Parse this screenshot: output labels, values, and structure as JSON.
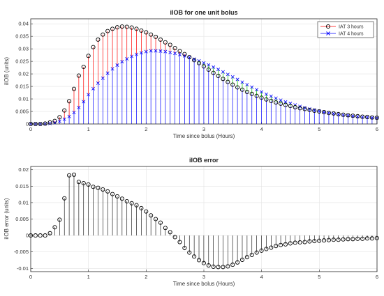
{
  "chart_data": [
    {
      "type": "line",
      "title": "iIOB for one unit bolus",
      "xlabel": "Time since bolus (Hours)",
      "ylabel": "iIOB (units)",
      "xlim": [
        0,
        6
      ],
      "ylim": [
        0,
        0.042
      ],
      "x_ticks": [
        "0",
        "1",
        "2",
        "3",
        "4",
        "5",
        "6"
      ],
      "y_ticks": [
        "0",
        "0.005",
        "0.01",
        "0.015",
        "0.02",
        "0.025",
        "0.03",
        "0.035",
        "0.04"
      ],
      "grid": true,
      "legend_position": "top-right",
      "x_step_hours": 0.0833,
      "series": [
        {
          "name": "IAT 3 hours",
          "marker": "o",
          "values": [
            0,
            0,
            0,
            0.00015,
            0.0006,
            0.0012,
            0.0027,
            0.0054,
            0.0091,
            0.014,
            0.0193,
            0.0228,
            0.0272,
            0.0307,
            0.0337,
            0.0357,
            0.0371,
            0.038,
            0.0386,
            0.0389,
            0.0388,
            0.0385,
            0.038,
            0.0373,
            0.0366,
            0.0357,
            0.0348,
            0.0337,
            0.0326,
            0.0316,
            0.0303,
            0.0291,
            0.0279,
            0.0267,
            0.0255,
            0.0243,
            0.023,
            0.0217,
            0.0204,
            0.0192,
            0.018,
            0.0168,
            0.0157,
            0.0146,
            0.0137,
            0.0128,
            0.012,
            0.0112,
            0.0105,
            0.0098,
            0.0092,
            0.0086,
            0.0081,
            0.0076,
            0.0072,
            0.0067,
            0.0063,
            0.006,
            0.0056,
            0.0053,
            0.005,
            0.0047,
            0.0044,
            0.0042,
            0.0039,
            0.0037,
            0.0035,
            0.0033,
            0.0031,
            0.0029,
            0.0028,
            0.0026,
            0.0025
          ]
        },
        {
          "name": "IAT 4 hours",
          "marker": "x",
          "values": [
            0,
            0,
            0,
            5e-05,
            0.0002,
            0.0005,
            0.0011,
            0.0019,
            0.003,
            0.0046,
            0.0066,
            0.0089,
            0.0117,
            0.0141,
            0.0163,
            0.0183,
            0.0203,
            0.022,
            0.0235,
            0.0249,
            0.026,
            0.027,
            0.0278,
            0.0284,
            0.0289,
            0.0292,
            0.0292,
            0.0291,
            0.0289,
            0.0286,
            0.0282,
            0.0277,
            0.0272,
            0.0266,
            0.0259,
            0.0252,
            0.0244,
            0.0236,
            0.0227,
            0.0218,
            0.0208,
            0.0198,
            0.0188,
            0.0178,
            0.0167,
            0.0157,
            0.0147,
            0.0137,
            0.0128,
            0.0119,
            0.0111,
            0.0103,
            0.0095,
            0.0088,
            0.0082,
            0.0076,
            0.007,
            0.0065,
            0.006,
            0.0056,
            0.0052,
            0.0048,
            0.0045,
            0.0042,
            0.0039,
            0.0036,
            0.0034,
            0.0032,
            0.003,
            0.0028,
            0.0027,
            0.0025,
            0.0024
          ]
        }
      ]
    },
    {
      "type": "stem",
      "title": "iIOB error",
      "xlabel": "Time since bolus (Hours)",
      "ylabel": "iIOB error (units)",
      "xlim": [
        0,
        6
      ],
      "ylim": [
        -0.011,
        0.021
      ],
      "x_ticks": [
        "0",
        "1",
        "2",
        "3",
        "4",
        "5",
        "6"
      ],
      "y_ticks": [
        "-0.01",
        "-0.005",
        "0",
        "0.005",
        "0.01",
        "0.015",
        "0.02"
      ],
      "grid": true,
      "x_step_hours": 0.0833,
      "values": [
        0,
        0,
        0,
        0,
        0.0007,
        0.0025,
        0.0048,
        0.0113,
        0.0183,
        0.0185,
        0.0163,
        0.0159,
        0.0155,
        0.0148,
        0.0145,
        0.014,
        0.0134,
        0.0126,
        0.0119,
        0.0112,
        0.0104,
        0.0098,
        0.0092,
        0.0083,
        0.0073,
        0.0061,
        0.005,
        0.0039,
        0.0023,
        0.001,
        -0.0005,
        -0.002,
        -0.0038,
        -0.0052,
        -0.0064,
        -0.0075,
        -0.0084,
        -0.0091,
        -0.0095,
        -0.0096,
        -0.0096,
        -0.0094,
        -0.0089,
        -0.0082,
        -0.0074,
        -0.0066,
        -0.0059,
        -0.0052,
        -0.0046,
        -0.0041,
        -0.0037,
        -0.0032,
        -0.0029,
        -0.0027,
        -0.0024,
        -0.0022,
        -0.0021,
        -0.002,
        -0.0018,
        -0.0017,
        -0.0016,
        -0.0015,
        -0.0014,
        -0.0013,
        -0.0013,
        -0.0012,
        -0.0011,
        -0.0011,
        -0.001,
        -0.001,
        -0.0009,
        -0.0009,
        -0.0008
      ]
    }
  ],
  "colors": {
    "diff_positive": "#ff0000",
    "diff_negative": "#00c000",
    "iat4_stem": "#0000ff",
    "iat4_marker": "#0000ff",
    "iat3_marker": "#000000",
    "error_stem": "#000000",
    "grid": "#e3e3e3",
    "axes": "#262626"
  }
}
